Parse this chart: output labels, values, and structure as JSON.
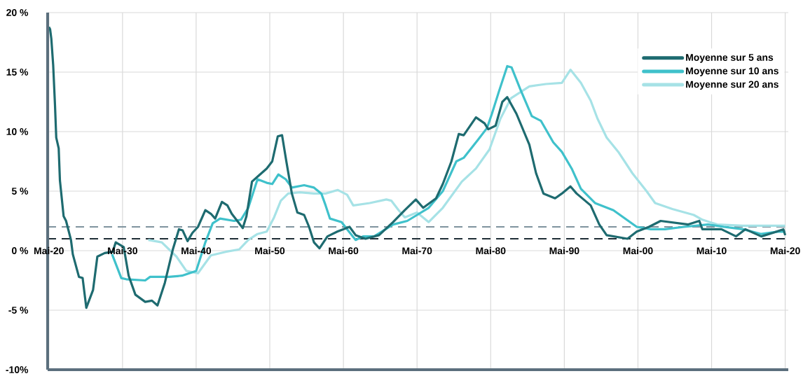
{
  "chart_data": {
    "type": "line",
    "xlim": [
      "1920-03",
      "2020-10"
    ],
    "ylim": [
      -10,
      20
    ],
    "xticks": [
      {
        "value": "1920-05",
        "label": "Mai-20"
      },
      {
        "value": "1930-05",
        "label": "Mai-30"
      },
      {
        "value": "1940-05",
        "label": "Mai-40"
      },
      {
        "value": "1950-05",
        "label": "Mai-50"
      },
      {
        "value": "1960-05",
        "label": "Mai-60"
      },
      {
        "value": "1970-05",
        "label": "Mai-70"
      },
      {
        "value": "1980-05",
        "label": "Mai-80"
      },
      {
        "value": "1990-05",
        "label": "Mai-90"
      },
      {
        "value": "2000-05",
        "label": "Mai-00"
      },
      {
        "value": "2010-05",
        "label": "Mai-10"
      },
      {
        "value": "2020-05",
        "label": "Mai-20"
      }
    ],
    "yticks": [
      {
        "value": -10,
        "label": "-10%"
      },
      {
        "value": -5,
        "label": "-5 %"
      },
      {
        "value": 0,
        "label": "0 %"
      },
      {
        "value": 5,
        "label": "5 %"
      },
      {
        "value": 10,
        "label": "10 %"
      },
      {
        "value": 15,
        "label": "15 %"
      },
      {
        "value": 20,
        "label": "20 %"
      }
    ],
    "grid": true,
    "legend": "top right",
    "ref_lines": [
      {
        "axis": "y",
        "value": 1,
        "color": "#1f2d36",
        "line_style": "dashed"
      },
      {
        "axis": "y",
        "value": 2,
        "color": "#7f939e",
        "line_style": "dashed"
      }
    ],
    "series": [
      {
        "name": "Moyenne sur 5 ans",
        "color": "#1e6b70",
        "x": [
          "1920-05",
          "1920-07",
          "1920-09",
          "1920-12",
          "1921-03",
          "1921-05",
          "1921-09",
          "1921-11",
          "1922-05",
          "1922-09",
          "1923-05",
          "1923-08",
          "1924-06",
          "1924-12",
          "1925-06",
          "1926-05",
          "1926-12",
          "1927-12",
          "1929-01",
          "1929-06",
          "1930-07",
          "1931-03",
          "1932-02",
          "1933-06",
          "1934-05",
          "1935-02",
          "1936-02",
          "1937-03",
          "1938-01",
          "1938-07",
          "1939-03",
          "1939-11",
          "1940-08",
          "1941-08",
          "1942-05",
          "1942-12",
          "1943-11",
          "1944-08",
          "1945-03",
          "1945-12",
          "1946-09",
          "1947-03",
          "1947-12",
          "1949-01",
          "1949-12",
          "1950-09",
          "1951-06",
          "1952-01",
          "1952-08",
          "1953-05",
          "1954-02",
          "1955-01",
          "1955-09",
          "1956-05",
          "1957-02",
          "1958-03",
          "1959-07",
          "1961-03",
          "1962-01",
          "1963-05",
          "1965-03",
          "1967-02",
          "1968-09",
          "1970-03",
          "1971-03",
          "1972-12",
          "1973-11",
          "1975-01",
          "1976-01",
          "1976-09",
          "1978-05",
          "1979-07",
          "1980-01",
          "1981-01",
          "1981-12",
          "1982-08",
          "1983-11",
          "1985-08",
          "1986-07",
          "1987-07",
          "1989-02",
          "1990-01",
          "1991-03",
          "1992-01",
          "1993-12",
          "1995-02",
          "1996-02",
          "1998-12",
          "2000-03",
          "2001-11",
          "2003-06",
          "2007-03",
          "2008-09",
          "2009-02",
          "2011-09",
          "2013-09",
          "2014-12",
          "2017-02",
          "2018-09",
          "2020-02",
          "2020-05"
        ],
        "values": [
          18.8,
          18.6,
          17.8,
          15.6,
          12.2,
          9.5,
          8.6,
          5.9,
          2.9,
          2.5,
          0.9,
          -0.3,
          -2.2,
          -2.3,
          -4.8,
          -3.3,
          -0.5,
          -0.2,
          -0.1,
          0.7,
          0.3,
          -2.1,
          -3.7,
          -4.3,
          -4.2,
          -4.6,
          -2.7,
          0.1,
          1.8,
          1.7,
          0.8,
          1.5,
          2.0,
          3.4,
          3.1,
          2.7,
          4.1,
          3.8,
          3.1,
          2.5,
          1.9,
          2.9,
          5.8,
          6.4,
          6.9,
          7.5,
          9.6,
          9.7,
          7.5,
          4.8,
          3.2,
          3.0,
          2.0,
          0.7,
          0.2,
          1.2,
          1.6,
          2.0,
          1.3,
          1.0,
          1.3,
          2.4,
          3.4,
          4.3,
          3.6,
          4.4,
          5.6,
          7.5,
          9.8,
          9.7,
          11.2,
          10.7,
          10.2,
          10.5,
          12.5,
          12.9,
          11.5,
          8.9,
          6.5,
          4.8,
          4.4,
          4.8,
          5.4,
          4.8,
          3.8,
          2.2,
          1.3,
          1.0,
          1.6,
          2.0,
          2.5,
          2.2,
          2.5,
          1.8,
          1.8,
          1.2,
          1.8,
          1.2,
          1.5,
          1.8,
          1.3
        ]
      },
      {
        "name": "Moyenne sur 10 ans",
        "color": "#3fc1cb",
        "x": [
          "1928-12",
          "1930-03",
          "1930-11",
          "1933-06",
          "1934-02",
          "1936-09",
          "1938-06",
          "1940-05",
          "1941-08",
          "1942-08",
          "1943-08",
          "1945-07",
          "1946-06",
          "1947-06",
          "1948-09",
          "1949-12",
          "1950-09",
          "1951-07",
          "1952-07",
          "1953-05",
          "1955-01",
          "1956-05",
          "1957-05",
          "1957-12",
          "1958-07",
          "1960-02",
          "1961-02",
          "1962-01",
          "1963-01",
          "1964-07",
          "1967-02",
          "1969-01",
          "1970-05",
          "1971-12",
          "1973-11",
          "1975-09",
          "1976-09",
          "1978-08",
          "1979-11",
          "1980-07",
          "1981-06",
          "1982-08",
          "1983-03",
          "1984-05",
          "1985-12",
          "1987-03",
          "1988-11",
          "1990-01",
          "1991-05",
          "1992-08",
          "1994-07",
          "1997-01",
          "2000-03",
          "2002-02",
          "2004-01",
          "2006-08",
          "2009-11",
          "2012-01",
          "2014-08",
          "2017-02",
          "2019-05",
          "2020-05"
        ],
        "values": [
          -0.3,
          -2.3,
          -2.4,
          -2.5,
          -2.2,
          -2.2,
          -2.1,
          -1.7,
          0.7,
          2.3,
          2.7,
          2.5,
          2.6,
          3.6,
          6.0,
          5.7,
          5.6,
          6.4,
          6.0,
          5.3,
          5.5,
          5.3,
          4.8,
          3.8,
          2.7,
          2.4,
          1.6,
          0.9,
          1.2,
          1.2,
          2.2,
          2.5,
          3.0,
          3.6,
          5.0,
          7.5,
          7.8,
          9.3,
          10.3,
          11.5,
          13.3,
          15.5,
          15.4,
          13.6,
          11.3,
          10.9,
          9.1,
          8.3,
          6.9,
          5.2,
          4.0,
          3.4,
          2.0,
          1.8,
          1.8,
          2.0,
          2.2,
          2.0,
          1.8,
          1.4,
          1.6,
          1.6
        ]
      },
      {
        "name": "Moyenne sur 20 ans",
        "color": "#a6e2e6",
        "x": [
          "1933-11",
          "1935-09",
          "1937-09",
          "1939-01",
          "1940-08",
          "1942-05",
          "1944-05",
          "1946-03",
          "1947-06",
          "1948-09",
          "1949-12",
          "1950-12",
          "1951-11",
          "1952-11",
          "1954-06",
          "1956-05",
          "1957-12",
          "1959-08",
          "1960-11",
          "1961-09",
          "1963-12",
          "1966-03",
          "1966-11",
          "1967-11",
          "1968-09",
          "1970-05",
          "1971-12",
          "1973-11",
          "1976-06",
          "1978-05",
          "1980-03",
          "1981-09",
          "1983-02",
          "1984-05",
          "1985-08",
          "1987-11",
          "1990-01",
          "1991-03",
          "1992-08",
          "1993-12",
          "1994-11",
          "1996-02",
          "1997-09",
          "1999-08",
          "2001-07",
          "2002-09",
          "2005-01",
          "2007-12",
          "2009-02",
          "2011-02",
          "2014-08",
          "2018-01",
          "2020-05"
        ],
        "values": [
          0.9,
          0.7,
          -0.5,
          -1.7,
          -1.9,
          -0.4,
          -0.1,
          0.1,
          0.9,
          1.4,
          1.6,
          2.8,
          4.2,
          4.8,
          4.9,
          4.8,
          4.8,
          5.1,
          4.7,
          3.8,
          4.0,
          4.3,
          4.2,
          3.4,
          2.8,
          3.2,
          2.4,
          3.6,
          5.8,
          6.9,
          8.5,
          11.1,
          12.8,
          13.3,
          13.8,
          14.0,
          14.1,
          15.2,
          14.1,
          12.6,
          11.1,
          9.5,
          8.3,
          6.5,
          5.0,
          4.0,
          3.5,
          3.0,
          2.6,
          2.2,
          2.1,
          2.1,
          2.1
        ]
      }
    ]
  }
}
